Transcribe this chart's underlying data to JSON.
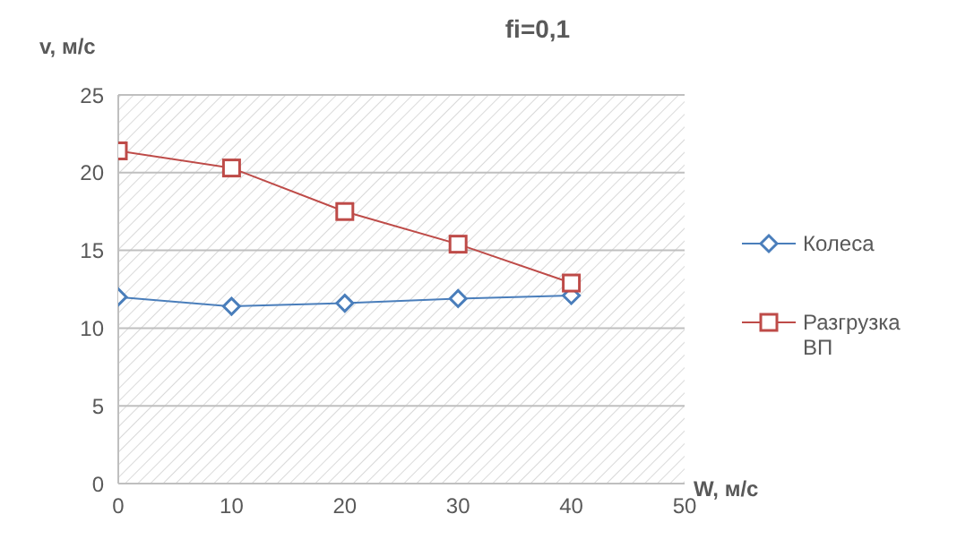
{
  "chart_data": {
    "type": "line",
    "title": "fi=0,1",
    "xlabel": "W, м/с",
    "ylabel": "v, м/с",
    "x": [
      0,
      10,
      20,
      30,
      40
    ],
    "series": [
      {
        "name": "Колеса",
        "color": "#4a7ebb",
        "marker": "diamond",
        "values": [
          12.0,
          11.4,
          11.6,
          11.9,
          12.1
        ]
      },
      {
        "name": "Разгрузка ВП",
        "color": "#be4b48",
        "marker": "square",
        "values": [
          21.4,
          20.3,
          17.5,
          15.4,
          12.9
        ]
      }
    ],
    "xlim": [
      0,
      50
    ],
    "xticks": [
      0,
      10,
      20,
      30,
      40,
      50
    ],
    "ylim": [
      0,
      25
    ],
    "yticks": [
      0,
      5,
      10,
      15,
      20,
      25
    ],
    "grid": "y",
    "legend": "right"
  }
}
